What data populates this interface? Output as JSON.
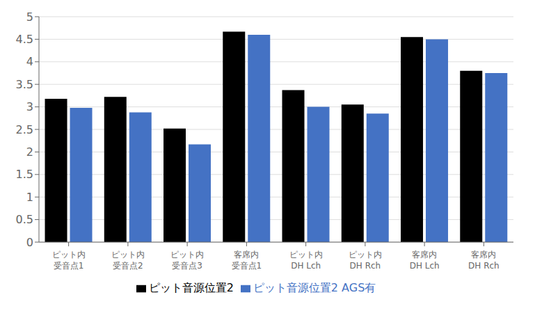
{
  "chart_data": {
    "type": "bar",
    "categories": [
      "ピット内\n受音点1",
      "ピット内\n受音点2",
      "ピット内\n受音点3",
      "客席内\n受音点1",
      "ピット内\nDH Lch",
      "ピット内\nDH Rch",
      "客席内\nDH Lch",
      "客席内\nDH Rch"
    ],
    "series": [
      {
        "name": "ピット音源位置2",
        "color": "#000000",
        "values": [
          3.18,
          3.22,
          2.52,
          4.67,
          3.37,
          3.05,
          4.55,
          3.8
        ]
      },
      {
        "name": "ピット音源位置2 AGS有",
        "color": "#4472C4",
        "values": [
          2.98,
          2.88,
          2.17,
          4.6,
          3.0,
          2.85,
          4.5,
          3.75
        ]
      }
    ],
    "ylim": [
      0,
      5
    ],
    "yticks": [
      0,
      0.5,
      1,
      1.5,
      2,
      2.5,
      3,
      3.5,
      4,
      4.5,
      5
    ],
    "grid": true,
    "legend": "bottom"
  }
}
